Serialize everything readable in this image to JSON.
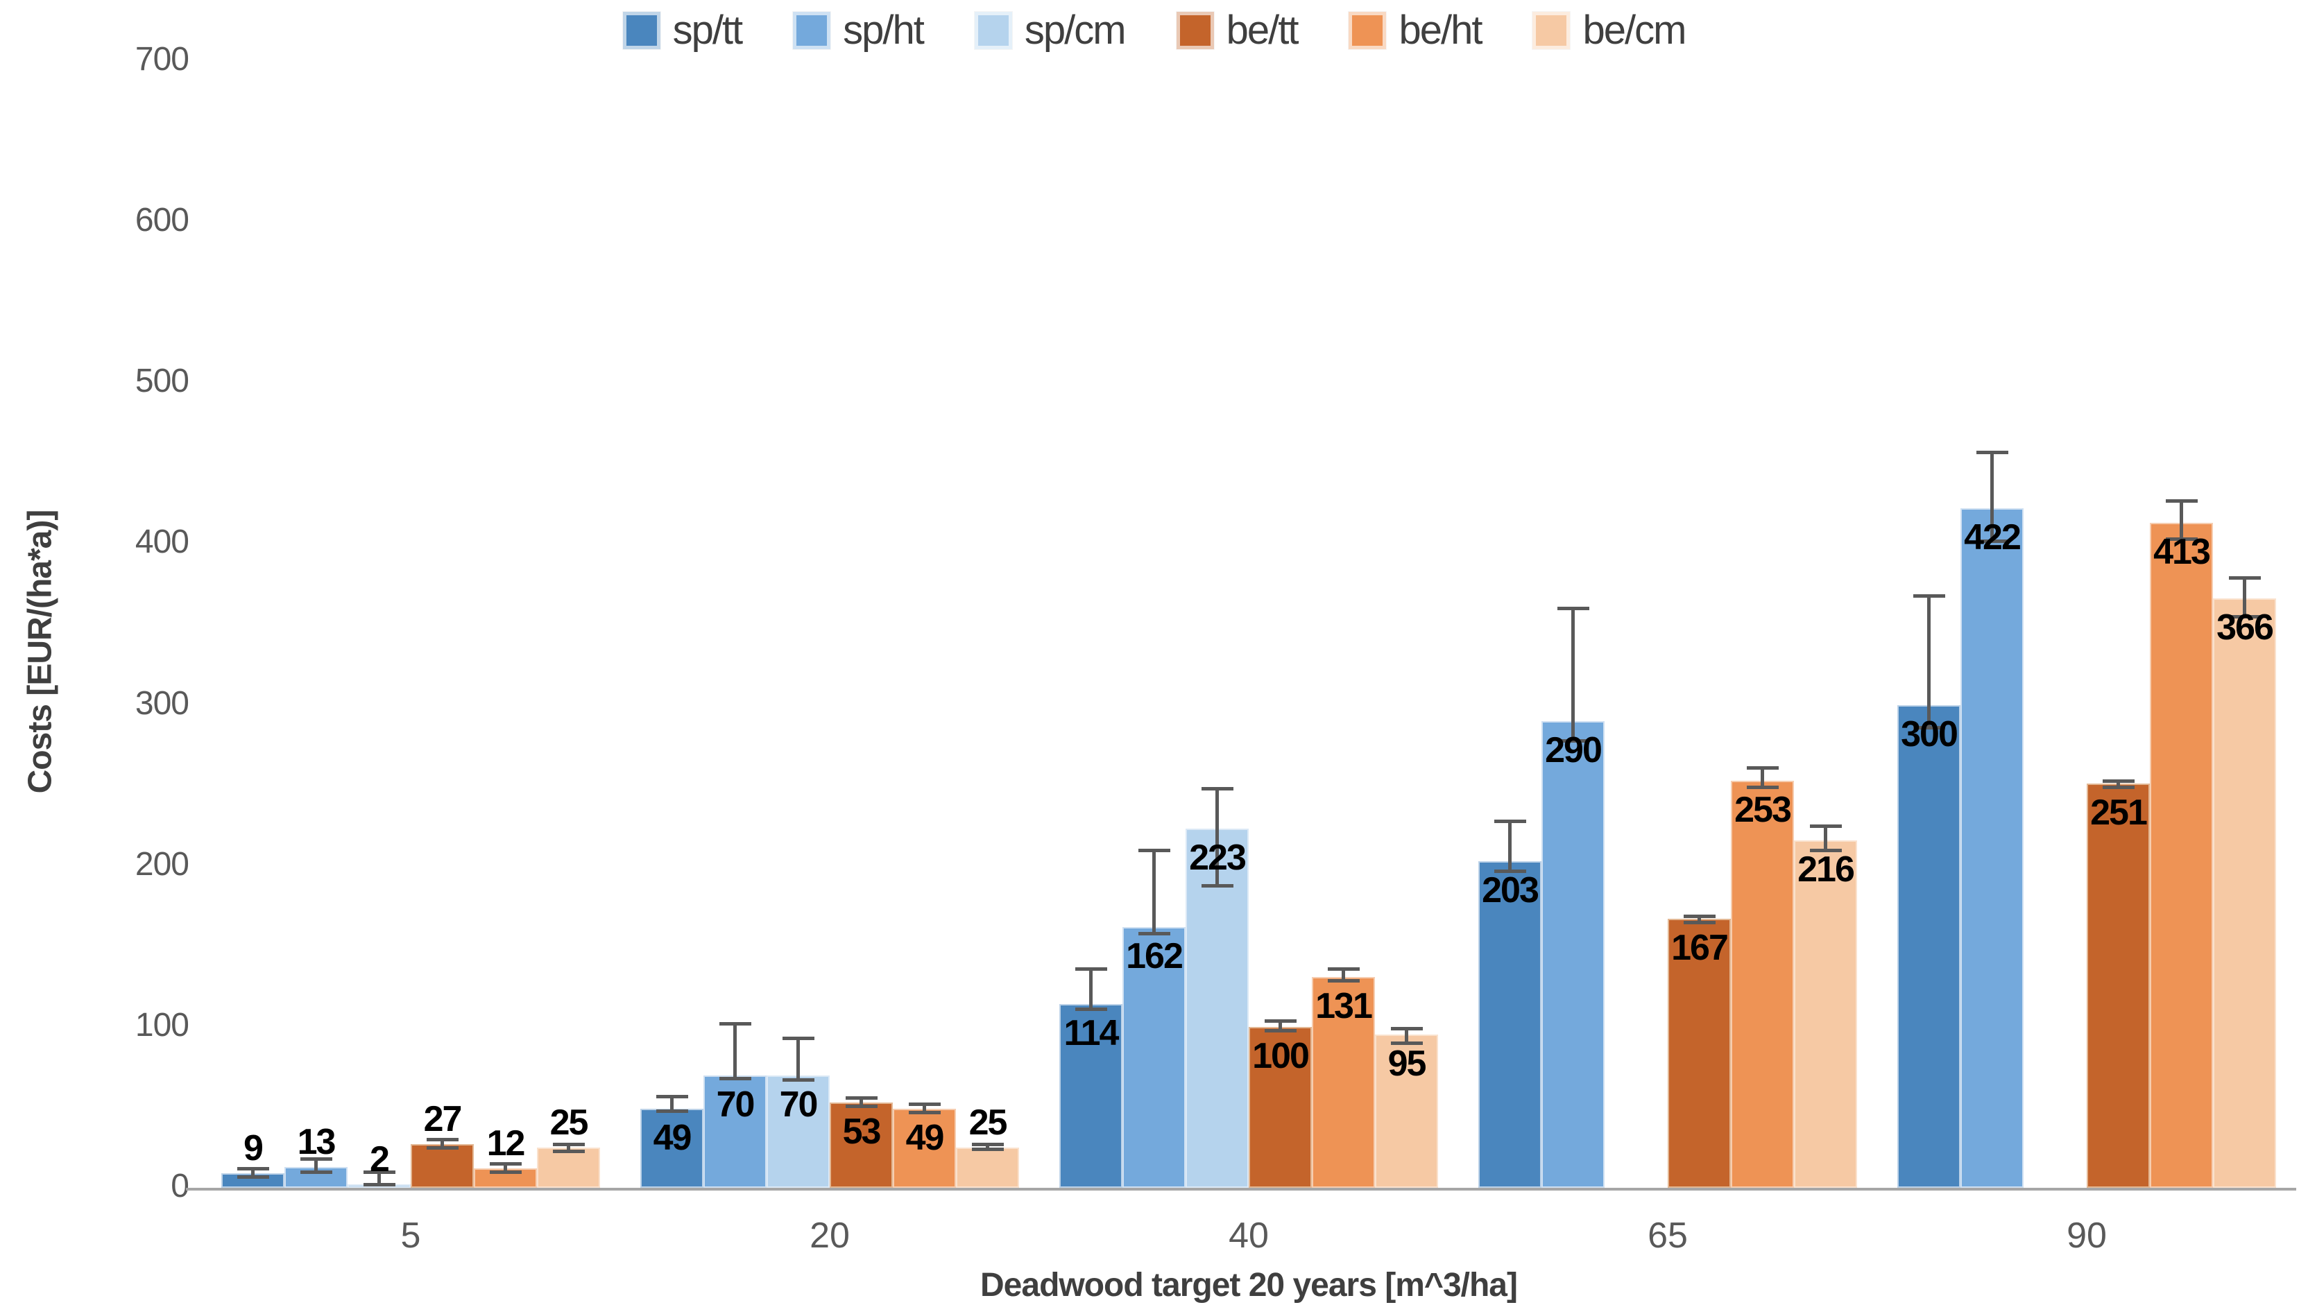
{
  "chart_data": {
    "type": "bar",
    "title": "",
    "xlabel": "Deadwood target 20 years [m^3/ha]",
    "ylabel": "Costs [EUR/(ha*a)]",
    "categories": [
      5,
      20,
      40,
      65,
      90
    ],
    "yticks": [
      0,
      100,
      200,
      300,
      400,
      500,
      600,
      700
    ],
    "ylim": [
      0,
      700
    ],
    "grid": false,
    "legend_position": "top-center",
    "error_bars": "asymmetric whiskers, values are absolute low/high ends",
    "axis_text_color": "#595959",
    "data_label_color": "#000000",
    "error_bar_color": "#595959",
    "axis_line_color": "#a6a6a6",
    "series": [
      {
        "name": "sp/tt",
        "color": "#4A86BE",
        "border": "#BCD2E8",
        "values": [
          9,
          49,
          114,
          203,
          300
        ],
        "err_lo": [
          7,
          48,
          111,
          197,
          286
        ],
        "err_hi": [
          12,
          57,
          136,
          228,
          368
        ]
      },
      {
        "name": "sp/ht",
        "color": "#74A9DC",
        "border": "#CFE0F2",
        "values": [
          13,
          70,
          162,
          290,
          422
        ],
        "err_lo": [
          10,
          68,
          158,
          278,
          402
        ],
        "err_hi": [
          18,
          102,
          210,
          360,
          457
        ]
      },
      {
        "name": "sp/cm",
        "color": "#B5D3ED",
        "border": "#DCE9F6",
        "values": [
          2,
          70,
          223,
          null,
          null
        ],
        "err_lo": [
          2,
          67,
          188,
          null,
          null
        ],
        "err_hi": [
          10,
          93,
          248,
          null,
          null
        ]
      },
      {
        "name": "be/tt",
        "color": "#C4642B",
        "border": "#E3B894",
        "values": [
          27,
          53,
          100,
          167,
          251
        ],
        "err_lo": [
          25,
          51,
          98,
          165,
          249
        ],
        "err_hi": [
          30,
          56,
          104,
          169,
          253
        ]
      },
      {
        "name": "be/ht",
        "color": "#EE9355",
        "border": "#F6CDB0",
        "values": [
          12,
          49,
          131,
          253,
          413
        ],
        "err_lo": [
          10,
          47,
          129,
          249,
          403
        ],
        "err_hi": [
          15,
          52,
          136,
          261,
          427
        ]
      },
      {
        "name": "be/cm",
        "color": "#F6C9A4",
        "border": "#FAE2CE",
        "values": [
          25,
          25,
          95,
          216,
          366
        ],
        "err_lo": [
          23,
          24,
          90,
          210,
          355
        ],
        "err_hi": [
          27,
          27,
          99,
          225,
          379
        ]
      }
    ]
  }
}
